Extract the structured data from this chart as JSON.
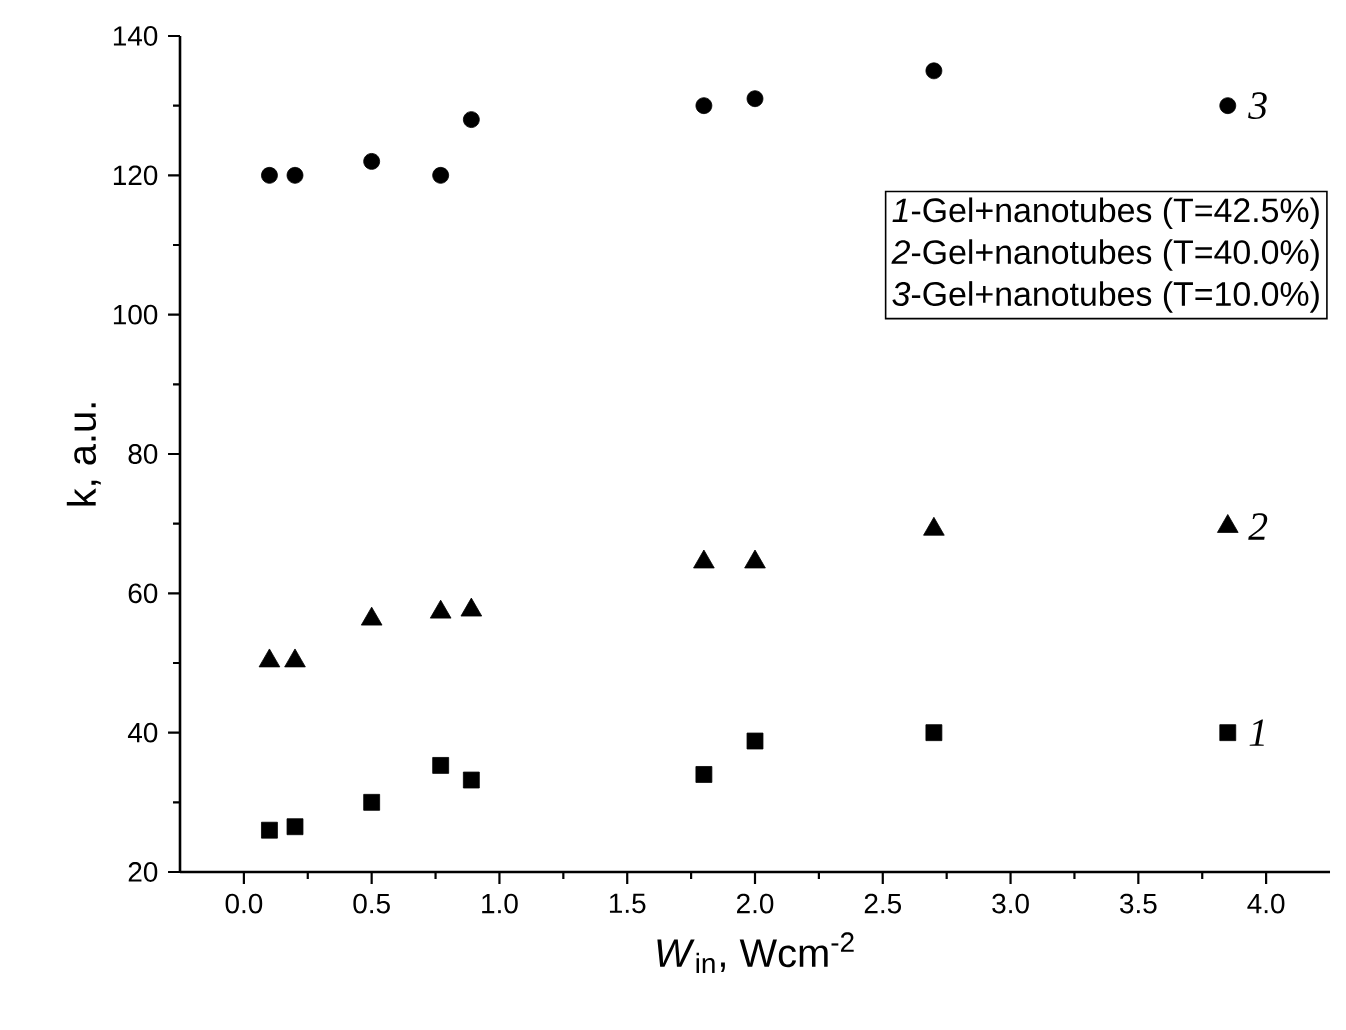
{
  "chart_data": {
    "type": "scatter",
    "xlabel": "*W*$_{in}$, Wcm$^{-2}$",
    "ylabel": "k, a.u.",
    "x": [
      0.1,
      0.2,
      0.5,
      0.77,
      0.89,
      1.8,
      2.0,
      2.7,
      3.85
    ],
    "series": [
      {
        "name": "1",
        "color": "#000000",
        "marker": "square",
        "values": [
          26,
          26.5,
          30,
          35.3,
          33.2,
          34,
          38.8,
          40,
          40
        ]
      },
      {
        "name": "2",
        "color": "#000000",
        "marker": "triangle",
        "values": [
          50.3,
          50.3,
          56.3,
          57.3,
          57.6,
          64.5,
          64.5,
          69.2,
          69.6
        ]
      },
      {
        "name": "3",
        "color": "#000000",
        "marker": "circle",
        "values": [
          120,
          120,
          122,
          120,
          128,
          130,
          131,
          135,
          130
        ]
      }
    ],
    "xlim": [
      -0.25,
      4.25
    ],
    "ylim": [
      20,
      140
    ],
    "xticks": [
      {
        "value": 0,
        "label": "0.0"
      },
      0.5,
      {
        "value": 1,
        "label": "1.0"
      },
      1.5,
      {
        "value": 2,
        "label": "2.0"
      },
      2.5,
      {
        "value": 3,
        "label": "3.0"
      },
      3.5,
      {
        "value": 4,
        "label": "4.0"
      }
    ],
    "yticks": [
      20,
      40,
      60,
      80,
      100,
      120,
      140
    ],
    "annotations": [
      {
        "text": "*1*-Gel+nanotubes (T=42.5%)"
      },
      {
        "text": "*2*-Gel+nanotubes (T=40.0%)"
      },
      {
        "text": "*3*-Gel+nanotubes (T=10.0%)"
      }
    ],
    "grid": false,
    "legend": false
  }
}
